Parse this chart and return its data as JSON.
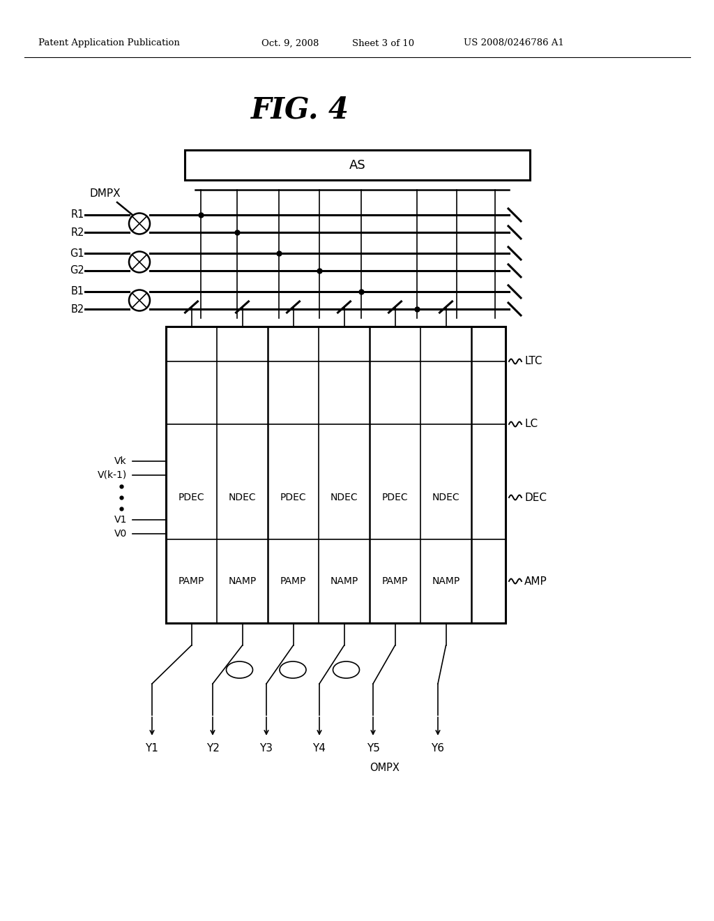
{
  "bg_color": "#ffffff",
  "header_left": "Patent Application Publication",
  "header_mid1": "Oct. 9, 2008",
  "header_mid2": "Sheet 3 of 10",
  "header_right": "US 2008/0246786 A1",
  "fig_title": "FIG. 4",
  "as_label": "AS",
  "dmpx_label": "DMPX",
  "signal_labels": [
    "R1",
    "R2",
    "G1",
    "G2",
    "B1",
    "B2"
  ],
  "vk_labels": [
    "Vk",
    "V(k-1)",
    "V1",
    "V0"
  ],
  "dec_labels": [
    "PDEC",
    "NDEC"
  ],
  "amp_labels": [
    "PAMP",
    "NAMP"
  ],
  "right_labels": [
    "LTC",
    "LC",
    "DEC",
    "AMP"
  ],
  "ompx_label": "OMPX",
  "output_labels": [
    "Y1",
    "Y2",
    "Y3",
    "Y4",
    "Y5",
    "Y6"
  ]
}
